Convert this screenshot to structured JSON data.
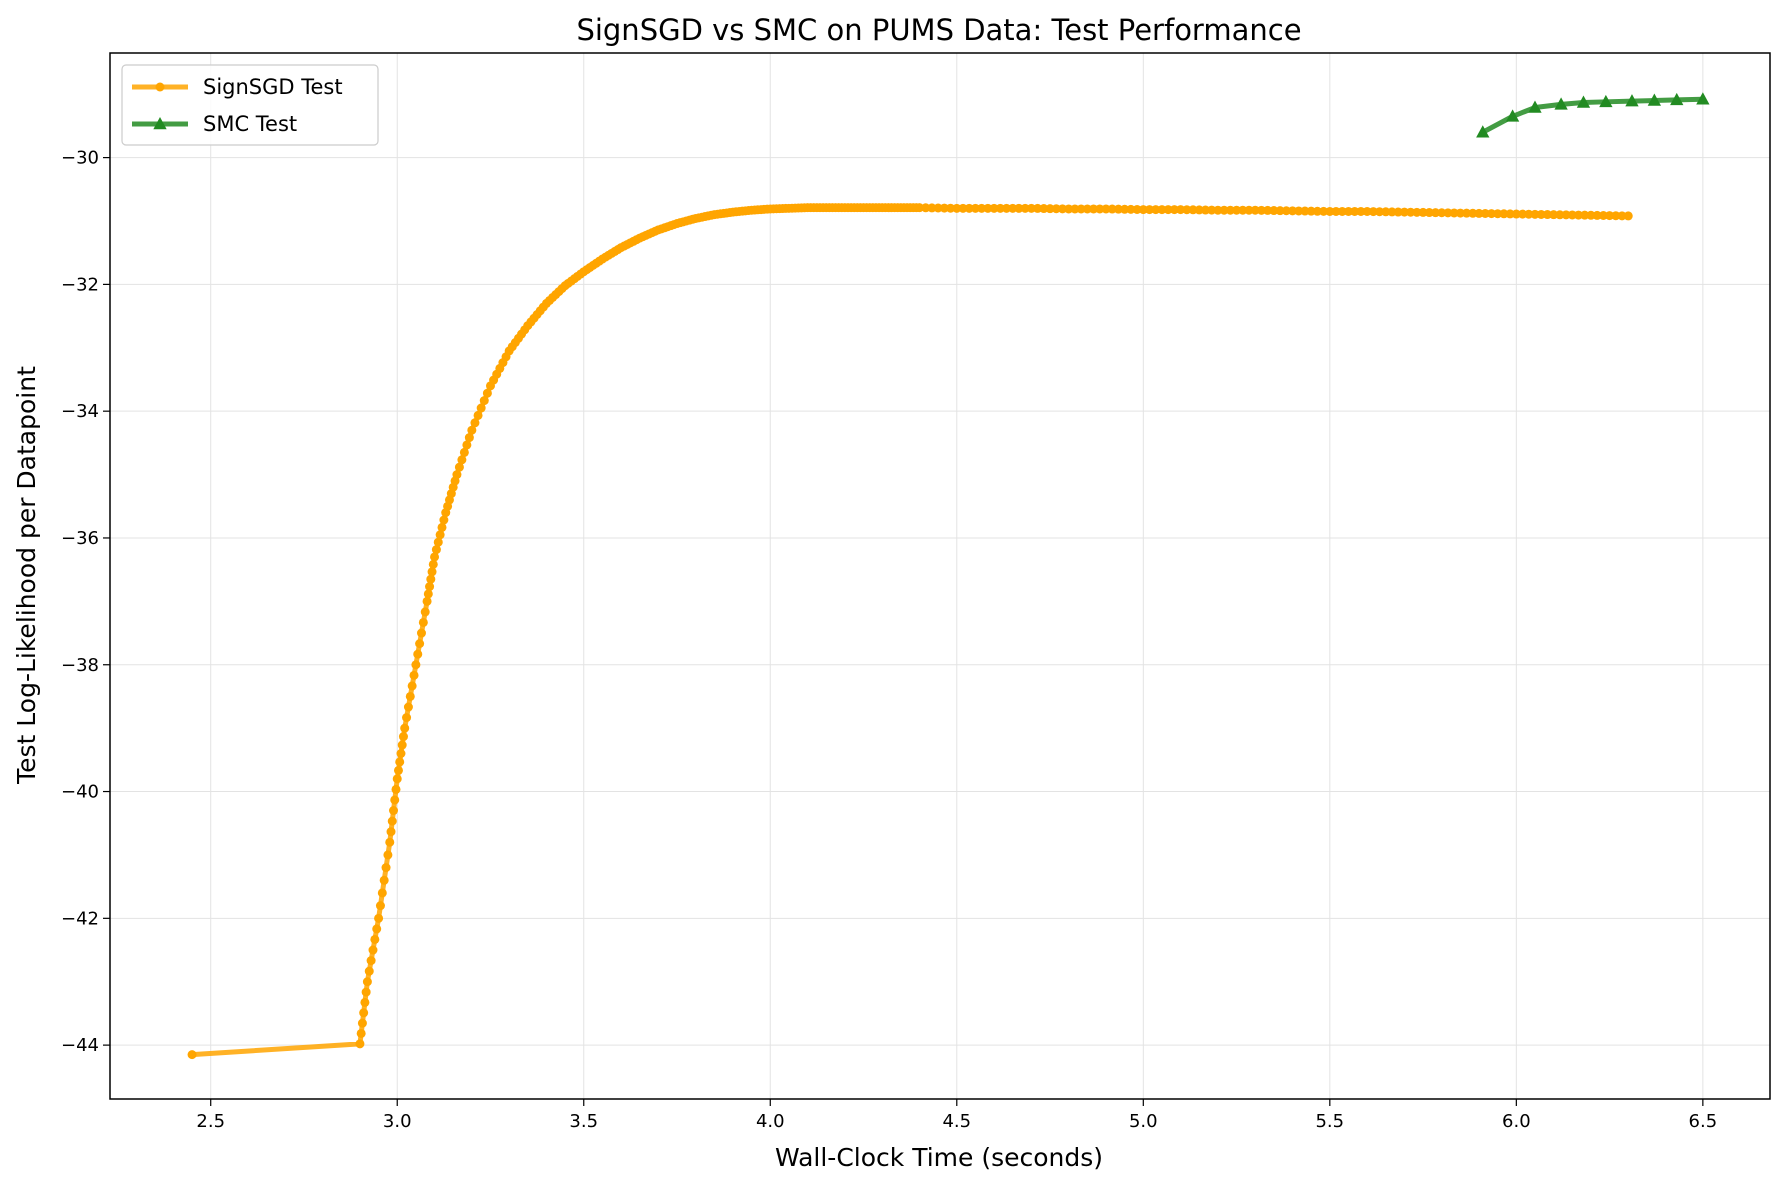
{
  "chart_data": {
    "type": "line",
    "title": "SignSGD vs SMC on PUMS Data: Test Performance",
    "xlabel": "Wall-Clock Time (seconds)",
    "ylabel": "Test Log-Likelihood per Datapoint",
    "xlim": [
      2.23,
      6.68
    ],
    "ylim": [
      -44.85,
      -28.35
    ],
    "xticks": [
      2.5,
      3.0,
      3.5,
      4.0,
      4.5,
      5.0,
      5.5,
      6.0,
      6.5
    ],
    "xtick_labels": [
      "2.5",
      "3.0",
      "3.5",
      "4.0",
      "4.5",
      "5.0",
      "5.5",
      "6.0",
      "6.5"
    ],
    "yticks": [
      -44,
      -42,
      -40,
      -38,
      -36,
      -34,
      -32,
      -30
    ],
    "ytick_labels": [
      "−44",
      "−42",
      "−40",
      "−38",
      "−36",
      "−34",
      "−32",
      "−30"
    ],
    "grid": true,
    "legend_position": "upper-left",
    "series": [
      {
        "name": "SignSGD Test",
        "color": "#ffa500",
        "marker": "circle",
        "x": [
          2.45,
          2.9,
          2.92,
          2.95,
          2.98,
          3.0,
          3.02,
          3.05,
          3.08,
          3.1,
          3.13,
          3.16,
          3.2,
          3.25,
          3.3,
          3.35,
          3.4,
          3.45,
          3.5,
          3.55,
          3.6,
          3.65,
          3.7,
          3.75,
          3.8,
          3.85,
          3.9,
          3.95,
          4.0,
          4.05,
          4.1,
          4.15,
          4.2,
          4.25,
          4.3,
          4.35,
          4.4,
          4.5,
          4.6,
          4.7,
          4.8,
          4.9,
          5.0,
          5.1,
          5.2,
          5.3,
          5.4,
          5.5,
          5.6,
          5.7,
          5.8,
          5.9,
          6.0,
          6.1,
          6.2,
          6.3
        ],
        "y": [
          -44.15,
          -43.98,
          -43.0,
          -42.0,
          -40.8,
          -39.8,
          -39.0,
          -38.0,
          -37.0,
          -36.3,
          -35.6,
          -35.0,
          -34.3,
          -33.6,
          -33.05,
          -32.65,
          -32.3,
          -32.02,
          -31.8,
          -31.6,
          -31.42,
          -31.27,
          -31.14,
          -31.04,
          -30.96,
          -30.9,
          -30.86,
          -30.83,
          -30.81,
          -30.8,
          -30.79,
          -30.79,
          -30.79,
          -30.79,
          -30.79,
          -30.79,
          -30.79,
          -30.8,
          -30.8,
          -30.8,
          -30.81,
          -30.81,
          -30.82,
          -30.82,
          -30.83,
          -30.83,
          -30.84,
          -30.85,
          -30.85,
          -30.86,
          -30.87,
          -30.88,
          -30.89,
          -30.9,
          -30.91,
          -30.92
        ]
      },
      {
        "name": "SMC Test",
        "color": "#228b22",
        "marker": "triangle",
        "x": [
          5.91,
          5.99,
          6.05,
          6.12,
          6.18,
          6.24,
          6.31,
          6.37,
          6.43,
          6.5
        ],
        "y": [
          -29.6,
          -29.35,
          -29.21,
          -29.16,
          -29.13,
          -29.12,
          -29.11,
          -29.1,
          -29.09,
          -29.08
        ]
      }
    ]
  }
}
